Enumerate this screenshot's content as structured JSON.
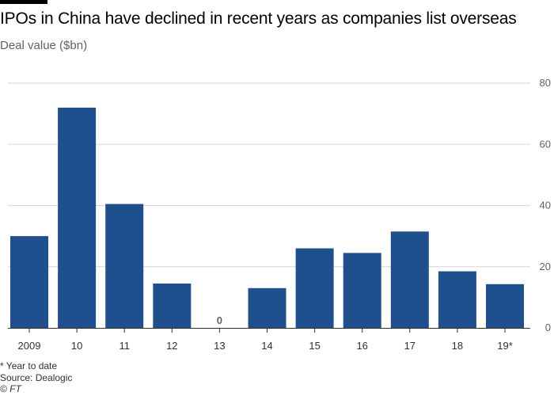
{
  "header": {
    "title": "IPOs in China have declined in recent years as companies list overseas",
    "subtitle": "Deal value ($bn)"
  },
  "footer": {
    "note": "* Year to date",
    "source": "Source: Dealogic",
    "copyright": "© FT"
  },
  "colors": {
    "bar": "#1f4f8c",
    "grid": "#d9d6d3",
    "axis": "#33302e",
    "text": "#66605c"
  },
  "chart_data": {
    "type": "bar",
    "title": "IPOs in China have declined in recent years as companies list overseas",
    "subtitle": "Deal value ($bn)",
    "categories": [
      "2009",
      "10",
      "11",
      "12",
      "13",
      "14",
      "15",
      "16",
      "17",
      "18",
      "19*"
    ],
    "values": [
      30,
      72,
      40.5,
      14.5,
      0,
      13,
      26,
      24.5,
      31.5,
      18.5,
      14.3
    ],
    "annotations": [
      {
        "category": "13",
        "text": "0"
      }
    ],
    "ylim": [
      0,
      80
    ],
    "yticks": [
      0,
      20,
      40,
      60,
      80
    ],
    "grid": true,
    "y_axis_side": "right",
    "legend": "none"
  }
}
